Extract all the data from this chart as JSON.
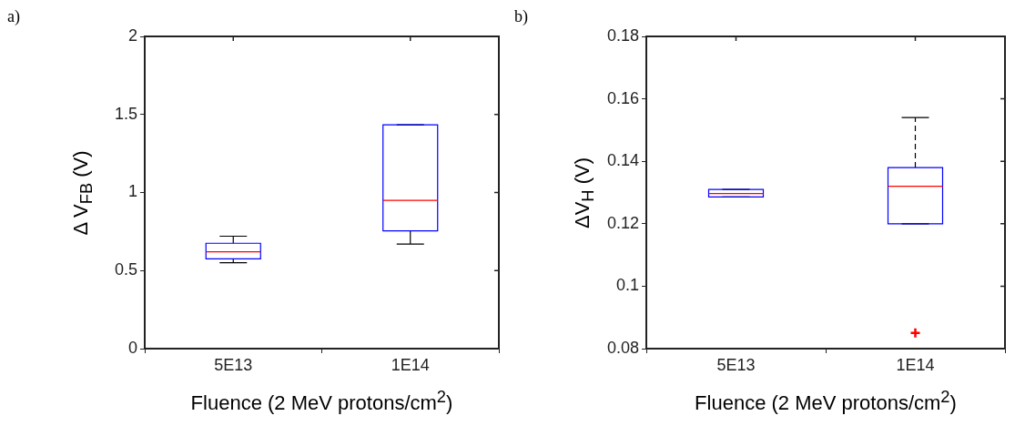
{
  "chart_data": [
    {
      "type": "box",
      "annotations": [
        "a)"
      ],
      "ylabel": "Δ V$_{FB}$ (V)",
      "xlabel": "Fluence (2 MeV protons/cm$^{2}$)",
      "categories": [
        "5E13",
        "1E14"
      ],
      "ylim": [
        0,
        2
      ],
      "yticks": [
        0,
        0.5,
        1,
        1.5,
        2
      ],
      "grid": false,
      "line_style": "solid",
      "series": [
        {
          "color": "#0000ff",
          "boxes": [
            {
              "low": 0.55,
              "q1": 0.575,
              "median": 0.62,
              "q3": 0.675,
              "high": 0.72
            },
            {
              "low": 0.67,
              "q1": 0.754,
              "median": 0.95,
              "q3": 1.434,
              "high": 1.434
            }
          ]
        }
      ]
    },
    {
      "type": "box",
      "annotations": [
        "b)"
      ],
      "ylabel": "ΔV$_{H}$ (V)",
      "xlabel": "Fluence (2 MeV protons/cm$^{2}$)",
      "categories": [
        "5E13",
        "1E14"
      ],
      "ylim": [
        0.08,
        0.18
      ],
      "yticks": [
        0.08,
        0.1,
        0.12,
        0.14,
        0.16,
        0.18
      ],
      "grid": false,
      "line_style": "dashed",
      "marker": "cross",
      "series": [
        {
          "color": "#0000ff",
          "boxes": [
            {
              "low": 0.1286,
              "q1": 0.1286,
              "median": 0.1297,
              "q3": 0.131,
              "high": 0.131
            },
            {
              "low": 0.12,
              "q1": 0.12,
              "median": 0.132,
              "q3": 0.138,
              "high": 0.154,
              "outliers": [
                0.085
              ]
            }
          ]
        }
      ]
    }
  ]
}
